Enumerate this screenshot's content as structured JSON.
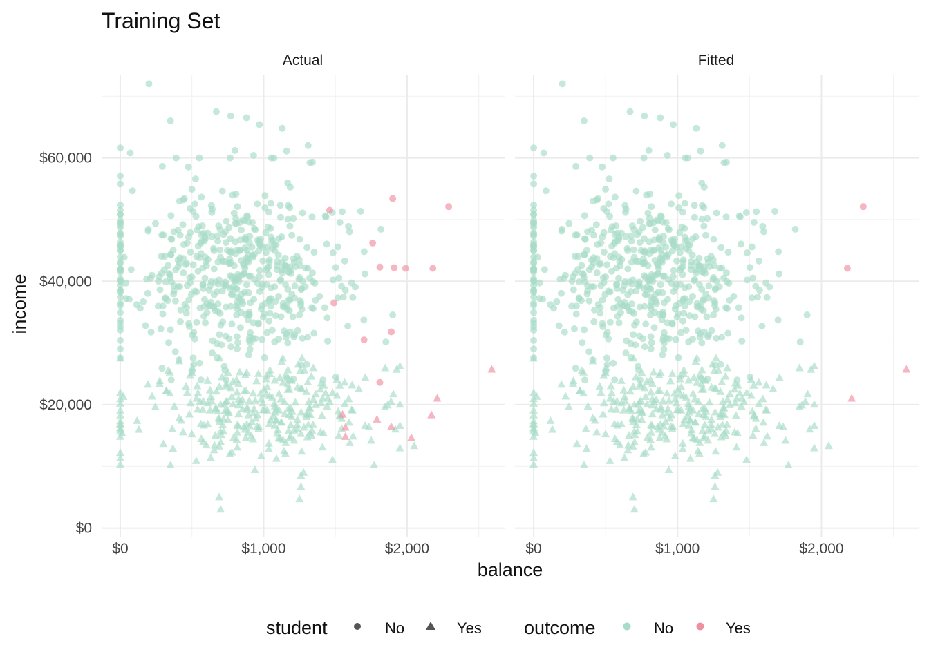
{
  "chart_data": {
    "type": "scatter",
    "title": "Training Set",
    "xlabel": "balance",
    "ylabel": "income",
    "panels": [
      "Actual",
      "Fitted"
    ],
    "xlim": [
      -130,
      2680
    ],
    "ylim": [
      -1500,
      73500
    ],
    "x_ticks": [
      0,
      1000,
      2000
    ],
    "x_tick_labels": [
      "$0",
      "$1,000",
      "$2,000"
    ],
    "y_ticks": [
      0,
      20000,
      40000,
      60000
    ],
    "y_tick_labels": [
      "$0",
      "$20,000",
      "$40,000",
      "$60,000"
    ],
    "grid": true,
    "legend_position": "bottom",
    "colors": {
      "No": "#a8dcc8",
      "Yes": "#ef8f9f"
    },
    "legend": {
      "student": {
        "title": "student",
        "No": "No",
        "Yes": "Yes"
      },
      "outcome": {
        "title": "outcome",
        "No": "No",
        "Yes": "Yes"
      }
    },
    "default_actual": [
      {
        "x": 1460,
        "y": 51500,
        "student": "No"
      },
      {
        "x": 1900,
        "y": 53400,
        "student": "No"
      },
      {
        "x": 2290,
        "y": 52100,
        "student": "No"
      },
      {
        "x": 1760,
        "y": 46200,
        "student": "No"
      },
      {
        "x": 1810,
        "y": 42300,
        "student": "No"
      },
      {
        "x": 1910,
        "y": 42200,
        "student": "No"
      },
      {
        "x": 1990,
        "y": 42100,
        "student": "No"
      },
      {
        "x": 2180,
        "y": 42100,
        "student": "No"
      },
      {
        "x": 1490,
        "y": 36500,
        "student": "No"
      },
      {
        "x": 1700,
        "y": 30500,
        "student": "No"
      },
      {
        "x": 1890,
        "y": 31800,
        "student": "No"
      },
      {
        "x": 1810,
        "y": 23600,
        "student": "No"
      },
      {
        "x": 2590,
        "y": 25700,
        "student": "Yes"
      },
      {
        "x": 2210,
        "y": 21000,
        "student": "Yes"
      },
      {
        "x": 1550,
        "y": 18400,
        "student": "Yes"
      },
      {
        "x": 1570,
        "y": 16300,
        "student": "Yes"
      },
      {
        "x": 1570,
        "y": 14800,
        "student": "Yes"
      },
      {
        "x": 1790,
        "y": 17600,
        "student": "Yes"
      },
      {
        "x": 1890,
        "y": 16400,
        "student": "Yes"
      },
      {
        "x": 2170,
        "y": 18300,
        "student": "Yes"
      },
      {
        "x": 2030,
        "y": 14600,
        "student": "Yes"
      }
    ],
    "default_fitted": [
      {
        "x": 2290,
        "y": 52100,
        "student": "No"
      },
      {
        "x": 2180,
        "y": 42100,
        "student": "No"
      },
      {
        "x": 2590,
        "y": 25700,
        "student": "Yes"
      },
      {
        "x": 2210,
        "y": 21000,
        "student": "Yes"
      }
    ],
    "non_default_sample": {
      "description_count": 900,
      "student_no": [
        {
          "x": 200,
          "y": 72000
        },
        {
          "x": 670,
          "y": 67500
        },
        {
          "x": 770,
          "y": 66800
        },
        {
          "x": 880,
          "y": 66500
        },
        {
          "x": 350,
          "y": 66000
        },
        {
          "x": 970,
          "y": 65400
        },
        {
          "x": 1130,
          "y": 64800
        },
        {
          "x": 1310,
          "y": 62000
        },
        {
          "x": 0,
          "y": 61600
        },
        {
          "x": 70,
          "y": 60800
        },
        {
          "x": 800,
          "y": 61200
        },
        {
          "x": 930,
          "y": 60400
        },
        {
          "x": 1160,
          "y": 61100
        }
      ],
      "student_yes": [
        {
          "x": 700,
          "y": 3000
        },
        {
          "x": 690,
          "y": 5000
        },
        {
          "x": 1250,
          "y": 4700
        },
        {
          "x": 1260,
          "y": 6700
        },
        {
          "x": 1260,
          "y": 8500
        },
        {
          "x": 1600,
          "y": 13800
        },
        {
          "x": 2050,
          "y": 13300
        },
        {
          "x": 1770,
          "y": 10200
        },
        {
          "x": 350,
          "y": 10200
        }
      ]
    }
  }
}
